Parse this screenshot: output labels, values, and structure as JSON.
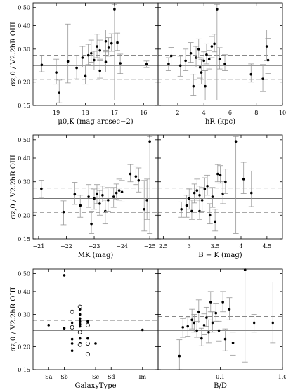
{
  "chart_data": [
    {
      "type": "scatter",
      "panel": "top-left",
      "xlabel": "μ0,K (mag arcsec−2)",
      "ylabel": "σz,0 / V2.2hR OIII",
      "x_reversed": true,
      "ylog": true,
      "xlim": [
        19.8,
        15.5
      ],
      "ylim": [
        0.15,
        0.53
      ],
      "xticks": [
        "19",
        "18",
        "17",
        "16"
      ],
      "yticks": [
        "0.15",
        "0.20",
        "0.30",
        "0.40",
        "0.50"
      ],
      "reference_lines": {
        "solid": 0.245,
        "dashed": [
          0.207,
          0.278
        ]
      },
      "points": [
        {
          "x": 19.5,
          "y": 0.247,
          "err_low": 0.02,
          "err_high": 0.03
        },
        {
          "x": 19.0,
          "y": 0.225,
          "err_low": 0.03,
          "err_high": 0.04
        },
        {
          "x": 18.9,
          "y": 0.175,
          "err_low": 0.02,
          "err_high": 0.03
        },
        {
          "x": 18.6,
          "y": 0.258,
          "err_low": 0.06,
          "err_high": 0.15
        },
        {
          "x": 18.3,
          "y": 0.238,
          "err_low": 0.03,
          "err_high": 0.04
        },
        {
          "x": 18.1,
          "y": 0.27,
          "err_low": 0.03,
          "err_high": 0.04
        },
        {
          "x": 18.0,
          "y": 0.215,
          "err_low": 0.02,
          "err_high": 0.03
        },
        {
          "x": 17.9,
          "y": 0.278,
          "err_low": 0.03,
          "err_high": 0.04
        },
        {
          "x": 17.8,
          "y": 0.285,
          "err_low": 0.03,
          "err_high": 0.05
        },
        {
          "x": 17.7,
          "y": 0.262,
          "err_low": 0.03,
          "err_high": 0.03
        },
        {
          "x": 17.6,
          "y": 0.31,
          "err_low": 0.04,
          "err_high": 0.05
        },
        {
          "x": 17.5,
          "y": 0.23,
          "err_low": 0.02,
          "err_high": 0.03
        },
        {
          "x": 17.5,
          "y": 0.295,
          "err_low": 0.03,
          "err_high": 0.04
        },
        {
          "x": 17.3,
          "y": 0.256,
          "err_low": 0.03,
          "err_high": 0.04
        },
        {
          "x": 17.3,
          "y": 0.33,
          "err_low": 0.04,
          "err_high": 0.05
        },
        {
          "x": 17.2,
          "y": 0.305,
          "err_low": 0.03,
          "err_high": 0.04
        },
        {
          "x": 17.1,
          "y": 0.322,
          "err_low": 0.03,
          "err_high": 0.04
        },
        {
          "x": 17.0,
          "y": 0.49,
          "err_low": 0.33,
          "err_high": 0.03
        },
        {
          "x": 16.9,
          "y": 0.325,
          "err_low": 0.03,
          "err_high": 0.04
        },
        {
          "x": 16.8,
          "y": 0.252,
          "err_low": 0.03,
          "err_high": 0.03
        },
        {
          "x": 15.9,
          "y": 0.249,
          "err_low": 0.01,
          "err_high": 0.01
        }
      ]
    },
    {
      "type": "scatter",
      "panel": "top-right",
      "xlabel": "hR (kpc)",
      "ylog": true,
      "xlim": [
        0.5,
        10
      ],
      "ylim": [
        0.15,
        0.53
      ],
      "xticks": [
        "2",
        "4",
        "6",
        "8",
        "10"
      ],
      "reference_lines": {
        "solid": 0.245,
        "dashed": [
          0.207,
          0.278
        ]
      },
      "points": [
        {
          "x": 1.3,
          "y": 0.25,
          "err_low": 0.02,
          "err_high": 0.02
        },
        {
          "x": 1.5,
          "y": 0.276,
          "err_low": 0.03,
          "err_high": 0.03
        },
        {
          "x": 2.2,
          "y": 0.245,
          "err_low": 0.03,
          "err_high": 0.03
        },
        {
          "x": 2.6,
          "y": 0.26,
          "err_low": 0.03,
          "err_high": 0.04
        },
        {
          "x": 3.0,
          "y": 0.285,
          "err_low": 0.03,
          "err_high": 0.04
        },
        {
          "x": 3.2,
          "y": 0.19,
          "err_low": 0.02,
          "err_high": 0.03
        },
        {
          "x": 3.4,
          "y": 0.27,
          "err_low": 0.03,
          "err_high": 0.04
        },
        {
          "x": 3.6,
          "y": 0.3,
          "err_low": 0.03,
          "err_high": 0.04
        },
        {
          "x": 3.7,
          "y": 0.24,
          "err_low": 0.03,
          "err_high": 0.03
        },
        {
          "x": 3.8,
          "y": 0.225,
          "err_low": 0.03,
          "err_high": 0.04
        },
        {
          "x": 4.0,
          "y": 0.26,
          "err_low": 0.03,
          "err_high": 0.03
        },
        {
          "x": 4.1,
          "y": 0.19,
          "err_low": 0.03,
          "err_high": 0.04
        },
        {
          "x": 4.2,
          "y": 0.28,
          "err_low": 0.03,
          "err_high": 0.04
        },
        {
          "x": 4.4,
          "y": 0.265,
          "err_low": 0.03,
          "err_high": 0.03
        },
        {
          "x": 4.6,
          "y": 0.31,
          "err_low": 0.04,
          "err_high": 0.04
        },
        {
          "x": 4.8,
          "y": 0.32,
          "err_low": 0.03,
          "err_high": 0.04
        },
        {
          "x": 5.0,
          "y": 0.49,
          "err_low": 0.33,
          "err_high": 0.03
        },
        {
          "x": 5.2,
          "y": 0.265,
          "err_low": 0.03,
          "err_high": 0.04
        },
        {
          "x": 5.6,
          "y": 0.25,
          "err_low": 0.02,
          "err_high": 0.03
        },
        {
          "x": 7.6,
          "y": 0.22,
          "err_low": 0.02,
          "err_high": 0.03
        },
        {
          "x": 8.5,
          "y": 0.208,
          "err_low": 0.03,
          "err_high": 0.04
        },
        {
          "x": 8.8,
          "y": 0.31,
          "err_low": 0.05,
          "err_high": 0.07
        },
        {
          "x": 8.9,
          "y": 0.262,
          "err_low": 0.04,
          "err_high": 0.08
        }
      ]
    },
    {
      "type": "scatter",
      "panel": "middle-left",
      "xlabel": "MK (mag)",
      "ylabel": "σz,0 / V2.2hR OIII",
      "x_reversed": true,
      "ylog": true,
      "xlim": [
        -20.8,
        -25.3
      ],
      "ylim": [
        0.15,
        0.53
      ],
      "xticks": [
        "−21",
        "−22",
        "−23",
        "−24",
        "−25"
      ],
      "yticks": [
        "0.15",
        "0.20",
        "0.30",
        "0.40",
        "0.50"
      ],
      "reference_lines": {
        "solid": 0.245,
        "dashed": [
          0.207,
          0.278
        ]
      },
      "points": [
        {
          "x": -21.1,
          "y": 0.276,
          "err_low": 0.03,
          "err_high": 0.03
        },
        {
          "x": -21.9,
          "y": 0.208,
          "err_low": 0.03,
          "err_high": 0.03
        },
        {
          "x": -22.3,
          "y": 0.258,
          "err_low": 0.03,
          "err_high": 0.04
        },
        {
          "x": -22.5,
          "y": 0.225,
          "err_low": 0.03,
          "err_high": 0.03
        },
        {
          "x": -22.8,
          "y": 0.25,
          "err_low": 0.03,
          "err_high": 0.04
        },
        {
          "x": -22.9,
          "y": 0.18,
          "err_low": 0.02,
          "err_high": 0.03
        },
        {
          "x": -23.0,
          "y": 0.245,
          "err_low": 0.03,
          "err_high": 0.03
        },
        {
          "x": -23.1,
          "y": 0.26,
          "err_low": 0.03,
          "err_high": 0.03
        },
        {
          "x": -23.2,
          "y": 0.23,
          "err_low": 0.03,
          "err_high": 0.04
        },
        {
          "x": -23.3,
          "y": 0.255,
          "err_low": 0.02,
          "err_high": 0.03
        },
        {
          "x": -23.4,
          "y": 0.21,
          "err_low": 0.03,
          "err_high": 0.03
        },
        {
          "x": -23.5,
          "y": 0.24,
          "err_low": 0.03,
          "err_high": 0.04
        },
        {
          "x": -23.7,
          "y": 0.25,
          "err_low": 0.03,
          "err_high": 0.03
        },
        {
          "x": -23.8,
          "y": 0.262,
          "err_low": 0.02,
          "err_high": 0.03
        },
        {
          "x": -23.9,
          "y": 0.27,
          "err_low": 0.03,
          "err_high": 0.04
        },
        {
          "x": -24.0,
          "y": 0.265,
          "err_low": 0.03,
          "err_high": 0.04
        },
        {
          "x": -24.3,
          "y": 0.33,
          "err_low": 0.03,
          "err_high": 0.04
        },
        {
          "x": -24.5,
          "y": 0.32,
          "err_low": 0.03,
          "err_high": 0.04
        },
        {
          "x": -24.6,
          "y": 0.305,
          "err_low": 0.04,
          "err_high": 0.05
        },
        {
          "x": -24.8,
          "y": 0.215,
          "err_low": 0.05,
          "err_high": 0.09
        },
        {
          "x": -24.9,
          "y": 0.24,
          "err_low": 0.05,
          "err_high": 0.07
        },
        {
          "x": -25.0,
          "y": 0.49,
          "err_low": 0.33,
          "err_high": 0.03
        }
      ]
    },
    {
      "type": "scatter",
      "panel": "middle-right",
      "xlabel": "B − K (mag)",
      "ylog": true,
      "xlim": [
        2.4,
        4.8
      ],
      "ylim": [
        0.15,
        0.53
      ],
      "xticks": [
        "2.5",
        "3",
        "3.5",
        "4",
        "4.5"
      ],
      "reference_lines": {
        "solid": 0.245,
        "dashed": [
          0.207,
          0.278
        ]
      },
      "points": [
        {
          "x": 2.85,
          "y": 0.215,
          "err_low": 0.02,
          "err_high": 0.02
        },
        {
          "x": 2.95,
          "y": 0.225,
          "err_low": 0.03,
          "err_high": 0.03
        },
        {
          "x": 3.0,
          "y": 0.245,
          "err_low": 0.03,
          "err_high": 0.03
        },
        {
          "x": 3.05,
          "y": 0.21,
          "err_low": 0.02,
          "err_high": 0.03
        },
        {
          "x": 3.1,
          "y": 0.262,
          "err_low": 0.03,
          "err_high": 0.03
        },
        {
          "x": 3.15,
          "y": 0.27,
          "err_low": 0.03,
          "err_high": 0.04
        },
        {
          "x": 3.2,
          "y": 0.255,
          "err_low": 0.02,
          "err_high": 0.03
        },
        {
          "x": 3.2,
          "y": 0.21,
          "err_low": 0.02,
          "err_high": 0.03
        },
        {
          "x": 3.25,
          "y": 0.24,
          "err_low": 0.03,
          "err_high": 0.04
        },
        {
          "x": 3.3,
          "y": 0.275,
          "err_low": 0.03,
          "err_high": 0.04
        },
        {
          "x": 3.35,
          "y": 0.285,
          "err_low": 0.03,
          "err_high": 0.04
        },
        {
          "x": 3.4,
          "y": 0.2,
          "err_low": 0.02,
          "err_high": 0.03
        },
        {
          "x": 3.45,
          "y": 0.25,
          "err_low": 0.03,
          "err_high": 0.03
        },
        {
          "x": 3.5,
          "y": 0.185,
          "err_low": 0.02,
          "err_high": 0.03
        },
        {
          "x": 3.55,
          "y": 0.33,
          "err_low": 0.03,
          "err_high": 0.04
        },
        {
          "x": 3.6,
          "y": 0.325,
          "err_low": 0.03,
          "err_high": 0.04
        },
        {
          "x": 3.65,
          "y": 0.26,
          "err_low": 0.03,
          "err_high": 0.04
        },
        {
          "x": 3.7,
          "y": 0.3,
          "err_low": 0.04,
          "err_high": 0.05
        },
        {
          "x": 3.9,
          "y": 0.49,
          "err_low": 0.33,
          "err_high": 0.03
        },
        {
          "x": 4.05,
          "y": 0.31,
          "err_low": 0.05,
          "err_high": 0.07
        },
        {
          "x": 4.2,
          "y": 0.262,
          "err_low": 0.04,
          "err_high": 0.08
        }
      ]
    },
    {
      "type": "scatter",
      "panel": "bottom-left",
      "xlabel": "GalaxyType",
      "ylabel": "σz,0 / V2.2hR OIII",
      "ylog": true,
      "xlim": [
        0,
        8
      ],
      "ylim": [
        0.15,
        0.53
      ],
      "xticks": [
        "Sa",
        "Sb",
        "Sc",
        "Sd",
        "Im"
      ],
      "yticks": [
        "0.15",
        "0.20",
        "0.30",
        "0.40",
        "0.50"
      ],
      "reference_lines": {
        "solid": 0.245,
        "dashed": [
          0.207,
          0.278
        ]
      },
      "points": [
        {
          "x": 1.0,
          "y": 0.262,
          "marker": "filled"
        },
        {
          "x": 2.0,
          "y": 0.49,
          "marker": "filled"
        },
        {
          "x": 2.0,
          "y": 0.252,
          "marker": "filled"
        },
        {
          "x": 2.5,
          "y": 0.27,
          "marker": "filled"
        },
        {
          "x": 2.5,
          "y": 0.22,
          "marker": "filled"
        },
        {
          "x": 2.5,
          "y": 0.208,
          "marker": "filled"
        },
        {
          "x": 2.5,
          "y": 0.19,
          "marker": "filled"
        },
        {
          "x": 2.5,
          "y": 0.31,
          "marker": "open"
        },
        {
          "x": 2.5,
          "y": 0.255,
          "marker": "open"
        },
        {
          "x": 3.0,
          "y": 0.33,
          "marker": "open"
        },
        {
          "x": 3.0,
          "y": 0.32,
          "marker": "filled"
        },
        {
          "x": 3.0,
          "y": 0.3,
          "marker": "filled"
        },
        {
          "x": 3.0,
          "y": 0.285,
          "marker": "filled"
        },
        {
          "x": 3.0,
          "y": 0.275,
          "marker": "filled"
        },
        {
          "x": 3.0,
          "y": 0.265,
          "marker": "filled"
        },
        {
          "x": 3.0,
          "y": 0.258,
          "marker": "filled"
        },
        {
          "x": 3.0,
          "y": 0.24,
          "marker": "open"
        },
        {
          "x": 3.0,
          "y": 0.222,
          "marker": "filled"
        },
        {
          "x": 3.0,
          "y": 0.21,
          "marker": "filled"
        },
        {
          "x": 3.0,
          "y": 0.205,
          "marker": "open"
        },
        {
          "x": 3.5,
          "y": 0.275,
          "marker": "filled"
        },
        {
          "x": 3.5,
          "y": 0.262,
          "marker": "open"
        },
        {
          "x": 3.5,
          "y": 0.222,
          "marker": "filled"
        },
        {
          "x": 3.5,
          "y": 0.21,
          "marker": "filled"
        },
        {
          "x": 3.5,
          "y": 0.208,
          "marker": "open"
        },
        {
          "x": 3.5,
          "y": 0.182,
          "marker": "open"
        },
        {
          "x": 4.0,
          "y": 0.208,
          "marker": "filled"
        },
        {
          "x": 7.0,
          "y": 0.247,
          "marker": "filled"
        }
      ]
    },
    {
      "type": "scatter",
      "panel": "bottom-right",
      "xlabel": "B/D",
      "xlog": true,
      "ylog": true,
      "xlim": [
        0.01,
        1.0
      ],
      "ylim": [
        0.15,
        0.53
      ],
      "xticks": [
        "0.1",
        "1.0"
      ],
      "reference_lines": {
        "solid": 0.245,
        "dashed": [
          0.207,
          0.292
        ]
      },
      "points": [
        {
          "x": 0.022,
          "y": 0.178,
          "err_low": 0.03,
          "err_high": 0.04
        },
        {
          "x": 0.025,
          "y": 0.255,
          "err_low": 0.03,
          "err_high": 0.03
        },
        {
          "x": 0.03,
          "y": 0.258,
          "err_low": 0.03,
          "err_high": 0.03
        },
        {
          "x": 0.035,
          "y": 0.28,
          "err_low": 0.03,
          "err_high": 0.04
        },
        {
          "x": 0.038,
          "y": 0.27,
          "err_low": 0.03,
          "err_high": 0.03
        },
        {
          "x": 0.042,
          "y": 0.245,
          "err_low": 0.02,
          "err_high": 0.03
        },
        {
          "x": 0.045,
          "y": 0.31,
          "err_low": 0.04,
          "err_high": 0.05
        },
        {
          "x": 0.05,
          "y": 0.222,
          "err_low": 0.02,
          "err_high": 0.03
        },
        {
          "x": 0.055,
          "y": 0.262,
          "err_low": 0.03,
          "err_high": 0.04
        },
        {
          "x": 0.06,
          "y": 0.288,
          "err_low": 0.03,
          "err_high": 0.04
        },
        {
          "x": 0.065,
          "y": 0.24,
          "err_low": 0.03,
          "err_high": 0.04
        },
        {
          "x": 0.07,
          "y": 0.35,
          "err_low": 0.04,
          "err_high": 0.05
        },
        {
          "x": 0.075,
          "y": 0.27,
          "err_low": 0.03,
          "err_high": 0.04
        },
        {
          "x": 0.085,
          "y": 0.305,
          "err_low": 0.03,
          "err_high": 0.04
        },
        {
          "x": 0.095,
          "y": 0.245,
          "err_low": 0.03,
          "err_high": 0.03
        },
        {
          "x": 0.11,
          "y": 0.35,
          "err_low": 0.04,
          "err_high": 0.05
        },
        {
          "x": 0.12,
          "y": 0.22,
          "err_low": 0.03,
          "err_high": 0.03
        },
        {
          "x": 0.14,
          "y": 0.32,
          "err_low": 0.04,
          "err_high": 0.05
        },
        {
          "x": 0.16,
          "y": 0.21,
          "err_low": 0.03,
          "err_high": 0.03
        },
        {
          "x": 0.25,
          "y": 0.525,
          "err_low": 0.36,
          "err_high": 0.005
        },
        {
          "x": 0.35,
          "y": 0.27,
          "err_low": 0.03,
          "err_high": 0.03
        },
        {
          "x": 0.7,
          "y": 0.27,
          "err_low": 0.06,
          "err_high": 0.18
        }
      ]
    }
  ]
}
